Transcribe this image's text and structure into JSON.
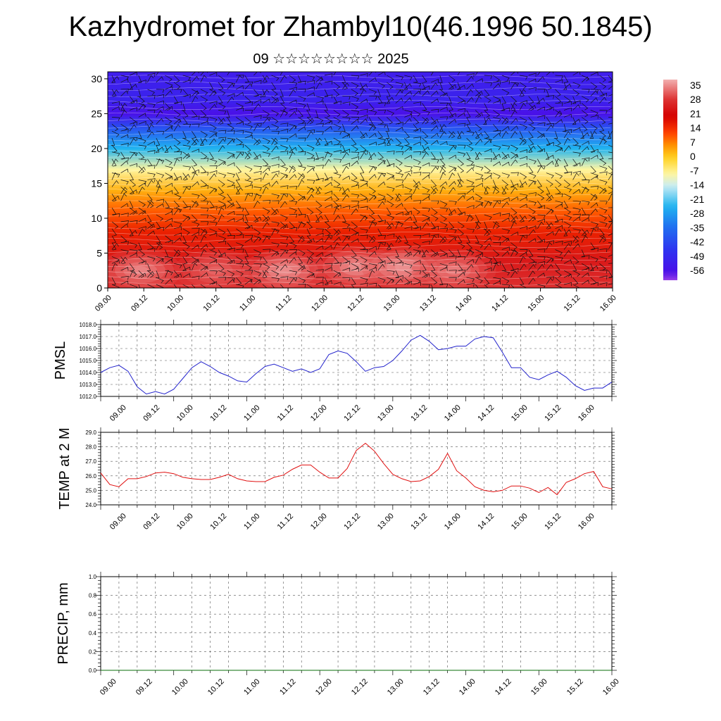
{
  "title": "Kazhydromet for Zhambyl10(46.1996 50.1845)",
  "subtitle": "09 ☆☆☆☆☆☆☆☆ 2025",
  "colors": {
    "pmsl_line": "#2222cc",
    "temp_line": "#e01010",
    "precip_line": "#0a6e0a",
    "grid": "#555555"
  },
  "chart_data": [
    {
      "type": "heatmap",
      "title": "",
      "x_tick_labels": [
        "09.00",
        "09.12",
        "10.00",
        "10.12",
        "11.00",
        "11.12",
        "12.00",
        "12.12",
        "13.00",
        "13.12",
        "14.00",
        "14.12",
        "15.00",
        "15.12",
        "16.00"
      ],
      "ylim": [
        0,
        31
      ],
      "y_ticks": [
        0,
        5,
        10,
        15,
        20,
        25,
        30
      ],
      "colorbar_labels": [
        "35",
        "28",
        "21",
        "14",
        "7",
        "0",
        "-7",
        "-14",
        "-21",
        "-28",
        "-35",
        "-42",
        "-49",
        "-56"
      ],
      "colorbar_range": [
        -60,
        38
      ],
      "colormap": [
        {
          "v": 38,
          "c": "#f2b0b0"
        },
        {
          "v": 28,
          "c": "#dd3030"
        },
        {
          "v": 20,
          "c": "#d40000"
        },
        {
          "v": 12,
          "c": "#ff4000"
        },
        {
          "v": 6,
          "c": "#ff9000"
        },
        {
          "v": 0,
          "c": "#ffd020"
        },
        {
          "v": -8,
          "c": "#fff6a0"
        },
        {
          "v": -14,
          "c": "#c8ecf4"
        },
        {
          "v": -24,
          "c": "#20b4f0"
        },
        {
          "v": -34,
          "c": "#2070f0"
        },
        {
          "v": -46,
          "c": "#3030f0"
        },
        {
          "v": -56,
          "c": "#4a10e8"
        },
        {
          "v": -60,
          "c": "#9a40e8"
        }
      ],
      "profile": [
        {
          "level": 0,
          "t": 28
        },
        {
          "level": 4,
          "t": 24
        },
        {
          "level": 8,
          "t": 16
        },
        {
          "level": 11,
          "t": 10
        },
        {
          "level": 14,
          "t": 3
        },
        {
          "level": 17,
          "t": -8
        },
        {
          "level": 20,
          "t": -24
        },
        {
          "level": 23,
          "t": -40
        },
        {
          "level": 25,
          "t": -56
        },
        {
          "level": 27,
          "t": -50
        },
        {
          "level": 31,
          "t": -52
        }
      ],
      "warm_spots": [
        {
          "x": 0.9,
          "level": 2.5,
          "dt": 10
        },
        {
          "x": 3.0,
          "level": 2.5,
          "dt": 6
        },
        {
          "x": 4.9,
          "level": 2.5,
          "dt": 12
        },
        {
          "x": 6.9,
          "level": 3.0,
          "dt": 12
        },
        {
          "x": 8.2,
          "level": 3.0,
          "dt": 14
        },
        {
          "x": 9.6,
          "level": 2.5,
          "dt": 9
        }
      ]
    },
    {
      "type": "line",
      "ylabel": "PMSL",
      "ylim": [
        1012,
        1018
      ],
      "y_tick_labels": [
        "1012.0",
        "1013.0",
        "1014.0",
        "1015.0",
        "1016.0",
        "1017.0",
        "1018.0"
      ],
      "x_tick_labels": [
        "09.00",
        "09.12",
        "10.00",
        "10.12",
        "11.00",
        "11.12",
        "12.00",
        "12.12",
        "13.00",
        "13.12",
        "14.00",
        "14.12",
        "15.00",
        "15.12",
        "16.00"
      ],
      "x": [
        0,
        1.5,
        3,
        4.5,
        6,
        7.5,
        9,
        10.5,
        12,
        13.5,
        15,
        16.5,
        18,
        19.5,
        21,
        22.5,
        24,
        25.5,
        27,
        28.5,
        30,
        31.5,
        33,
        34.5,
        36,
        37.5,
        39,
        40.5,
        42,
        43.5,
        45,
        46.5,
        48,
        49.5,
        51,
        52.5,
        54,
        55.5,
        57,
        58.5,
        60,
        61.5,
        63,
        64.5,
        66,
        67.5,
        69,
        70.5,
        72,
        73.5,
        75,
        76.5,
        78,
        79.5,
        81,
        82.5,
        84
      ],
      "values": [
        1014.0,
        1014.4,
        1014.6,
        1014.1,
        1012.8,
        1012.2,
        1012.4,
        1012.2,
        1012.6,
        1013.5,
        1014.4,
        1014.9,
        1014.5,
        1014.0,
        1013.7,
        1013.3,
        1013.2,
        1013.9,
        1014.5,
        1014.7,
        1014.4,
        1014.1,
        1014.3,
        1014.0,
        1014.3,
        1015.5,
        1015.8,
        1015.6,
        1014.9,
        1014.1,
        1014.4,
        1014.5,
        1015.0,
        1015.8,
        1016.7,
        1017.1,
        1016.6,
        1015.9,
        1016.0,
        1016.2,
        1016.2,
        1016.8,
        1017.0,
        1016.9,
        1015.7,
        1014.4,
        1014.4,
        1013.6,
        1013.4,
        1013.8,
        1014.1,
        1013.6,
        1012.9,
        1012.5,
        1012.7,
        1012.7,
        1013.2
      ]
    },
    {
      "type": "line",
      "ylabel": "TEMP at 2 M",
      "ylim": [
        24,
        29
      ],
      "y_tick_labels": [
        "24.0",
        "25.0",
        "26.0",
        "27.0",
        "28.0",
        "29.0"
      ],
      "x_tick_labels": [
        "09.00",
        "09.12",
        "10.00",
        "10.12",
        "11.00",
        "11.12",
        "12.00",
        "12.12",
        "13.00",
        "13.12",
        "14.00",
        "14.12",
        "15.00",
        "15.12",
        "16.00"
      ],
      "x": [
        0,
        1.5,
        3,
        4.5,
        6,
        7.5,
        9,
        10.5,
        12,
        13.5,
        15,
        16.5,
        18,
        19.5,
        21,
        22.5,
        24,
        25.5,
        27,
        28.5,
        30,
        31.5,
        33,
        34.5,
        36,
        37.5,
        39,
        40.5,
        42,
        43.5,
        45,
        46.5,
        48,
        49.5,
        51,
        52.5,
        54,
        55.5,
        57,
        58.5,
        60,
        61.5,
        63,
        64.5,
        66,
        67.5,
        69,
        70.5,
        72,
        73.5,
        75,
        76.5,
        78,
        79.5,
        81,
        82.5,
        84
      ],
      "values": [
        26.2,
        25.4,
        25.25,
        25.8,
        25.8,
        25.95,
        26.2,
        26.25,
        26.15,
        25.9,
        25.8,
        25.75,
        25.75,
        25.9,
        26.1,
        25.8,
        25.65,
        25.6,
        25.6,
        25.9,
        26.05,
        26.45,
        26.75,
        26.75,
        26.25,
        25.85,
        25.85,
        26.5,
        27.75,
        28.25,
        27.7,
        26.85,
        26.1,
        25.8,
        25.6,
        25.65,
        25.95,
        26.45,
        27.55,
        26.35,
        25.85,
        25.25,
        25.0,
        24.9,
        25.0,
        25.3,
        25.3,
        25.15,
        24.85,
        25.2,
        24.7,
        25.55,
        25.8,
        26.15,
        26.3,
        25.25,
        25.1
      ]
    },
    {
      "type": "line",
      "ylabel": "PRECIP, mm",
      "ylim": [
        0,
        1
      ],
      "y_tick_labels": [
        "0.0",
        "0.2",
        "0.4",
        "0.6",
        "0.8",
        "1.0"
      ],
      "x_tick_labels": [
        "09.00",
        "09.12",
        "10.00",
        "10.12",
        "11.00",
        "11.12",
        "12.00",
        "12.12",
        "13.00",
        "13.12",
        "14.00",
        "14.12",
        "15.00",
        "15.12",
        "16.00"
      ],
      "x": [
        0,
        84
      ],
      "values": [
        0,
        0
      ]
    }
  ]
}
